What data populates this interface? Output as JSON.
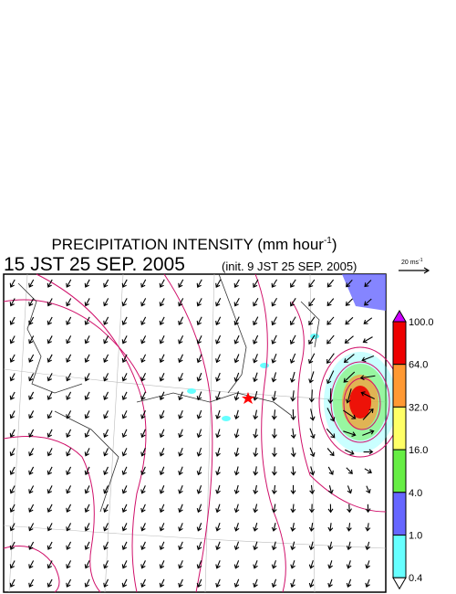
{
  "header": {
    "title": "PRECIPITATION INTENSITY (mm hour",
    "title_sup": "-1",
    "title_end": ")",
    "valid_time": "15 JST 25 SEP. 2005",
    "init_time": "(init. 9 JST 25 SEP. 2005)"
  },
  "reference_vector": {
    "label": "20 ms",
    "label_sup": "-1"
  },
  "colorbar": {
    "labels": [
      "100.0",
      "64.0",
      "32.0",
      "16.0",
      "4.0",
      "1.0",
      "0.4"
    ],
    "over_color": "#cc00ff",
    "under_color": "#ffffff",
    "colors": [
      "#ee0000",
      "#ff9933",
      "#ffff66",
      "#66ee44",
      "#6666ff",
      "#66ffff"
    ]
  }
}
